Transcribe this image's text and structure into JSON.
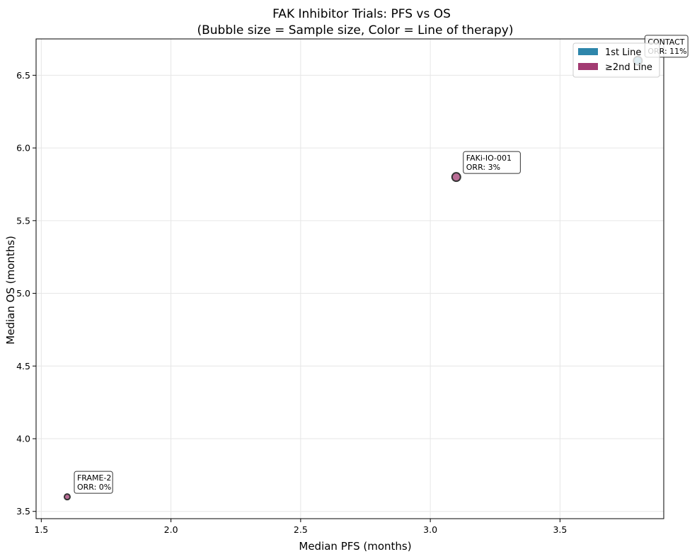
{
  "chart_data": {
    "type": "scatter",
    "title": "FAK Inhibitor Trials: PFS vs OS",
    "subtitle": "(Bubble size = Sample size, Color = Line of therapy)",
    "xlabel": "Median PFS (months)",
    "ylabel": "Median OS (months)",
    "xlim": [
      1.48,
      3.9
    ],
    "ylim": [
      3.45,
      6.75
    ],
    "xticks": [
      1.5,
      2.0,
      2.5,
      3.0,
      3.5
    ],
    "xtick_labels": [
      "1.5",
      "2.0",
      "2.5",
      "3.0",
      "3.5"
    ],
    "yticks": [
      3.5,
      4.0,
      4.5,
      5.0,
      5.5,
      6.0,
      6.5
    ],
    "ytick_labels": [
      "3.5",
      "4.0",
      "4.5",
      "5.0",
      "5.5",
      "6.0",
      "6.5"
    ],
    "grid": true,
    "legend_position": "top-right",
    "legend": [
      {
        "label": "1st Line",
        "color": "#2E86AB"
      },
      {
        "label": "≥2nd Line",
        "color": "#A23B72"
      }
    ],
    "points": [
      {
        "trial": "CONTACT",
        "pfs": 3.8,
        "os": 6.6,
        "line": "1st Line",
        "color": "#2E86AB",
        "annotation": [
          "CONTACT",
          "ORR: 11%"
        ]
      },
      {
        "trial": "FAKi-IO-001",
        "pfs": 3.1,
        "os": 5.8,
        "line": "≥2nd Line",
        "color": "#A23B72",
        "annotation": [
          "FAKi-IO-001",
          "ORR: 3%"
        ]
      },
      {
        "trial": "FRAME-2",
        "pfs": 1.6,
        "os": 3.6,
        "line": "≥2nd Line",
        "color": "#A23B72",
        "annotation": [
          "FRAME-2",
          "ORR: 0%"
        ]
      }
    ]
  }
}
